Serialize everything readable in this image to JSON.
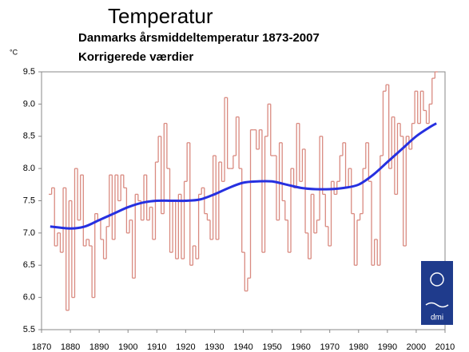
{
  "chart_data": {
    "type": "line",
    "title": "Temperatur",
    "subtitle": [
      "Danmarks årsmiddeltemperatur 1873-2007",
      "Korrigerede værdier"
    ],
    "ylabel": "°C",
    "logo": "dmi",
    "xlim": [
      1870,
      2010
    ],
    "xticks": [
      1870,
      1880,
      1890,
      1900,
      1910,
      1920,
      1930,
      1940,
      1950,
      1960,
      1970,
      1980,
      1990,
      2000,
      2010
    ],
    "ylim": [
      5.5,
      9.5
    ],
    "yticks": [
      5.5,
      {
        "value": 6,
        "label": "6.0"
      },
      6.5,
      {
        "value": 7,
        "label": "7.0"
      },
      7.5,
      {
        "value": 8,
        "label": "8.0"
      },
      8.5,
      {
        "value": 9,
        "label": "9.0"
      },
      9.5
    ],
    "series": [
      {
        "color": "#d98a80",
        "style": "step",
        "x": [
          1873,
          1874,
          1875,
          1876,
          1877,
          1878,
          1879,
          1880,
          1881,
          1882,
          1883,
          1884,
          1885,
          1886,
          1887,
          1888,
          1889,
          1890,
          1891,
          1892,
          1893,
          1894,
          1895,
          1896,
          1897,
          1898,
          1899,
          1900,
          1901,
          1902,
          1903,
          1904,
          1905,
          1906,
          1907,
          1908,
          1909,
          1910,
          1911,
          1912,
          1913,
          1914,
          1915,
          1916,
          1917,
          1918,
          1919,
          1920,
          1921,
          1922,
          1923,
          1924,
          1925,
          1926,
          1927,
          1928,
          1929,
          1930,
          1931,
          1932,
          1933,
          1934,
          1935,
          1936,
          1937,
          1938,
          1939,
          1940,
          1941,
          1942,
          1943,
          1944,
          1945,
          1946,
          1947,
          1948,
          1949,
          1950,
          1951,
          1952,
          1953,
          1954,
          1955,
          1956,
          1957,
          1958,
          1959,
          1960,
          1961,
          1962,
          1963,
          1964,
          1965,
          1966,
          1967,
          1968,
          1969,
          1970,
          1971,
          1972,
          1973,
          1974,
          1975,
          1976,
          1977,
          1978,
          1979,
          1980,
          1981,
          1982,
          1983,
          1984,
          1985,
          1986,
          1987,
          1988,
          1989,
          1990,
          1991,
          1992,
          1993,
          1994,
          1995,
          1996,
          1997,
          1998,
          1999,
          2000,
          2001,
          2002,
          2003,
          2004,
          2005,
          2006,
          2007
        ],
        "values": [
          7.6,
          7.7,
          6.8,
          7.0,
          6.7,
          7.7,
          5.8,
          7.5,
          6.0,
          8.0,
          7.2,
          7.9,
          6.8,
          6.9,
          6.8,
          6.0,
          7.3,
          7.2,
          6.9,
          6.6,
          7.1,
          7.9,
          6.9,
          7.9,
          7.5,
          7.9,
          7.7,
          7.0,
          7.2,
          6.3,
          7.6,
          7.5,
          7.2,
          7.9,
          7.2,
          7.4,
          6.9,
          8.1,
          8.5,
          7.3,
          8.7,
          8.0,
          6.7,
          7.5,
          6.6,
          7.6,
          6.6,
          7.8,
          8.4,
          6.5,
          6.8,
          6.6,
          7.6,
          7.7,
          7.3,
          7.2,
          6.9,
          8.2,
          6.9,
          8.1,
          7.8,
          9.1,
          8.0,
          8.0,
          8.2,
          8.8,
          8.0,
          6.7,
          6.1,
          6.3,
          8.6,
          8.6,
          8.3,
          8.6,
          6.7,
          8.5,
          9.0,
          8.2,
          8.2,
          7.2,
          8.4,
          7.5,
          7.2,
          6.7,
          8.0,
          7.7,
          8.7,
          7.8,
          8.3,
          7.0,
          6.6,
          7.6,
          7.0,
          7.2,
          8.5,
          7.6,
          7.1,
          6.8,
          7.8,
          7.6,
          7.8,
          8.2,
          8.4,
          7.7,
          8.0,
          7.3,
          6.5,
          7.2,
          7.3,
          8.0,
          8.4,
          7.8,
          6.5,
          6.9,
          6.5,
          8.2,
          9.2,
          9.3,
          8.0,
          8.8,
          7.6,
          8.7,
          8.5,
          6.8,
          8.5,
          8.3,
          8.7,
          9.2,
          8.7,
          9.2,
          8.9,
          8.7,
          9.0,
          9.4,
          9.5
        ]
      },
      {
        "color": "#2630e0",
        "style": "smooth",
        "x": [
          1873,
          1880,
          1885,
          1890,
          1895,
          1900,
          1905,
          1910,
          1915,
          1920,
          1925,
          1930,
          1935,
          1940,
          1945,
          1950,
          1955,
          1960,
          1965,
          1970,
          1975,
          1980,
          1985,
          1990,
          1995,
          2000,
          2005,
          2007
        ],
        "values": [
          7.1,
          7.07,
          7.1,
          7.2,
          7.3,
          7.4,
          7.47,
          7.5,
          7.5,
          7.5,
          7.52,
          7.6,
          7.7,
          7.78,
          7.8,
          7.8,
          7.75,
          7.7,
          7.68,
          7.68,
          7.7,
          7.75,
          7.9,
          8.1,
          8.3,
          8.5,
          8.65,
          8.7
        ]
      }
    ]
  }
}
